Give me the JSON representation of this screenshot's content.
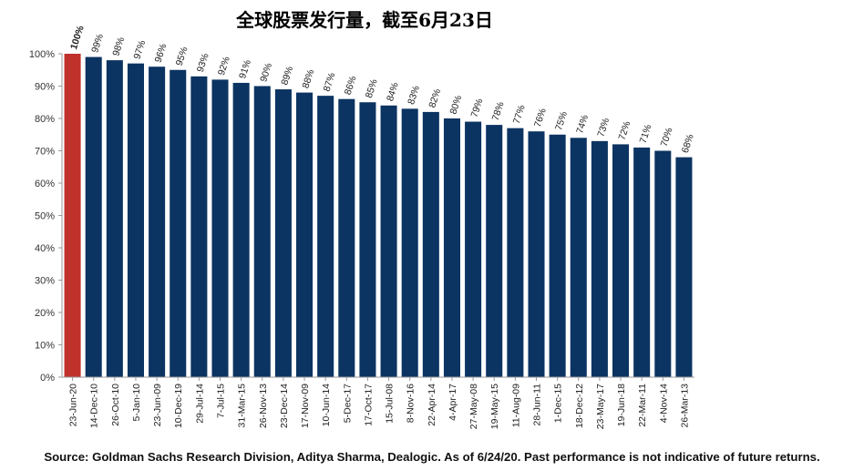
{
  "title": "全球股票发行量，截至6月23日",
  "footnote": "Source: Goldman Sachs Research Division, Aditya Sharma, Dealogic. As of 6/24/20. Past performance is not indicative of future returns.",
  "colors": {
    "highlight": "#c0312b",
    "bar": "#0c3462",
    "axis": "#9a9a9a"
  },
  "chart_data": {
    "type": "bar",
    "title": "全球股票发行量，截至6月23日",
    "xlabel": "",
    "ylabel": "",
    "ylim": [
      0,
      100
    ],
    "yticks": [
      "0%",
      "10%",
      "20%",
      "30%",
      "40%",
      "50%",
      "60%",
      "70%",
      "80%",
      "90%",
      "100%"
    ],
    "grid": false,
    "legend": "none",
    "categories": [
      "23-Jun-20",
      "14-Dec-10",
      "26-Oct-10",
      "5-Jan-10",
      "23-Jun-09",
      "10-Dec-19",
      "29-Jul-14",
      "7-Jul-15",
      "31-Mar-15",
      "26-Nov-13",
      "23-Dec-14",
      "17-Nov-09",
      "10-Jun-14",
      "5-Dec-17",
      "17-Oct-17",
      "15-Jul-08",
      "8-Nov-16",
      "22-Apr-14",
      "4-Apr-17",
      "27-May-08",
      "19-May-15",
      "11-Aug-09",
      "28-Jun-11",
      "1-Dec-15",
      "18-Dec-12",
      "23-May-17",
      "19-Jun-18",
      "22-Mar-11",
      "4-Nov-14",
      "26-Mar-13"
    ],
    "values": [
      100,
      99,
      98,
      97,
      96,
      95,
      93,
      92,
      91,
      90,
      89,
      88,
      87,
      86,
      85,
      84,
      83,
      82,
      80,
      79,
      78,
      77,
      76,
      75,
      74,
      73,
      72,
      71,
      70,
      68
    ],
    "data_labels": [
      "100%",
      "99%",
      "98%",
      "97%",
      "96%",
      "95%",
      "93%",
      "92%",
      "91%",
      "90%",
      "89%",
      "88%",
      "87%",
      "86%",
      "85%",
      "84%",
      "83%",
      "82%",
      "80%",
      "79%",
      "78%",
      "77%",
      "76%",
      "75%",
      "74%",
      "73%",
      "72%",
      "71%",
      "70%",
      "68%"
    ],
    "highlight_index": 0
  }
}
